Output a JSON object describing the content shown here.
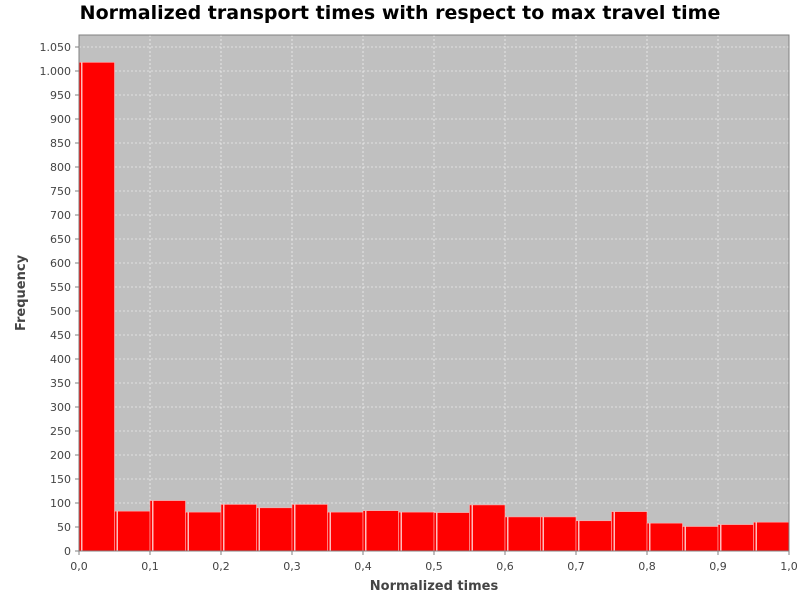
{
  "chart_data": {
    "type": "bar",
    "title": "Normalized transport times with respect to max travel time",
    "xlabel": "Normalized times",
    "ylabel": "Frequency",
    "xlim": [
      0,
      1.0
    ],
    "ylim": [
      0,
      1075
    ],
    "grid": true,
    "legend": "none",
    "colors": {
      "bar": "#ff0000",
      "plot_background": "#c0c0c0",
      "grid": "#ffffff"
    },
    "x_ticks": [
      {
        "value": 0.0,
        "label": "0,0"
      },
      {
        "value": 0.1,
        "label": "0,1"
      },
      {
        "value": 0.2,
        "label": "0,2"
      },
      {
        "value": 0.3,
        "label": "0,3"
      },
      {
        "value": 0.4,
        "label": "0,4"
      },
      {
        "value": 0.5,
        "label": "0,5"
      },
      {
        "value": 0.6,
        "label": "0,6"
      },
      {
        "value": 0.7,
        "label": "0,7"
      },
      {
        "value": 0.8,
        "label": "0,8"
      },
      {
        "value": 0.9,
        "label": "0,9"
      },
      {
        "value": 1.0,
        "label": "1,0"
      }
    ],
    "y_ticks": [
      {
        "value": 0,
        "label": "0"
      },
      {
        "value": 50,
        "label": "50"
      },
      {
        "value": 100,
        "label": "100"
      },
      {
        "value": 150,
        "label": "150"
      },
      {
        "value": 200,
        "label": "200"
      },
      {
        "value": 250,
        "label": "250"
      },
      {
        "value": 300,
        "label": "300"
      },
      {
        "value": 350,
        "label": "350"
      },
      {
        "value": 400,
        "label": "400"
      },
      {
        "value": 450,
        "label": "450"
      },
      {
        "value": 500,
        "label": "500"
      },
      {
        "value": 550,
        "label": "550"
      },
      {
        "value": 600,
        "label": "600"
      },
      {
        "value": 650,
        "label": "650"
      },
      {
        "value": 700,
        "label": "700"
      },
      {
        "value": 750,
        "label": "750"
      },
      {
        "value": 800,
        "label": "800"
      },
      {
        "value": 850,
        "label": "850"
      },
      {
        "value": 900,
        "label": "900"
      },
      {
        "value": 950,
        "label": "950"
      },
      {
        "value": 1000,
        "label": "1.000"
      },
      {
        "value": 1050,
        "label": "1.050"
      }
    ],
    "bins": [
      {
        "x0": 0.0,
        "x1": 0.05,
        "value": 1018
      },
      {
        "x0": 0.05,
        "x1": 0.1,
        "value": 83
      },
      {
        "x0": 0.1,
        "x1": 0.15,
        "value": 105
      },
      {
        "x0": 0.15,
        "x1": 0.2,
        "value": 81
      },
      {
        "x0": 0.2,
        "x1": 0.25,
        "value": 97
      },
      {
        "x0": 0.25,
        "x1": 0.3,
        "value": 90
      },
      {
        "x0": 0.3,
        "x1": 0.35,
        "value": 97
      },
      {
        "x0": 0.35,
        "x1": 0.4,
        "value": 81
      },
      {
        "x0": 0.4,
        "x1": 0.45,
        "value": 84
      },
      {
        "x0": 0.45,
        "x1": 0.5,
        "value": 81
      },
      {
        "x0": 0.5,
        "x1": 0.55,
        "value": 80
      },
      {
        "x0": 0.55,
        "x1": 0.6,
        "value": 96
      },
      {
        "x0": 0.6,
        "x1": 0.65,
        "value": 71
      },
      {
        "x0": 0.65,
        "x1": 0.7,
        "value": 71
      },
      {
        "x0": 0.7,
        "x1": 0.75,
        "value": 63
      },
      {
        "x0": 0.75,
        "x1": 0.8,
        "value": 82
      },
      {
        "x0": 0.8,
        "x1": 0.85,
        "value": 58
      },
      {
        "x0": 0.85,
        "x1": 0.9,
        "value": 51
      },
      {
        "x0": 0.9,
        "x1": 0.95,
        "value": 55
      },
      {
        "x0": 0.95,
        "x1": 1.0,
        "value": 60
      }
    ]
  }
}
